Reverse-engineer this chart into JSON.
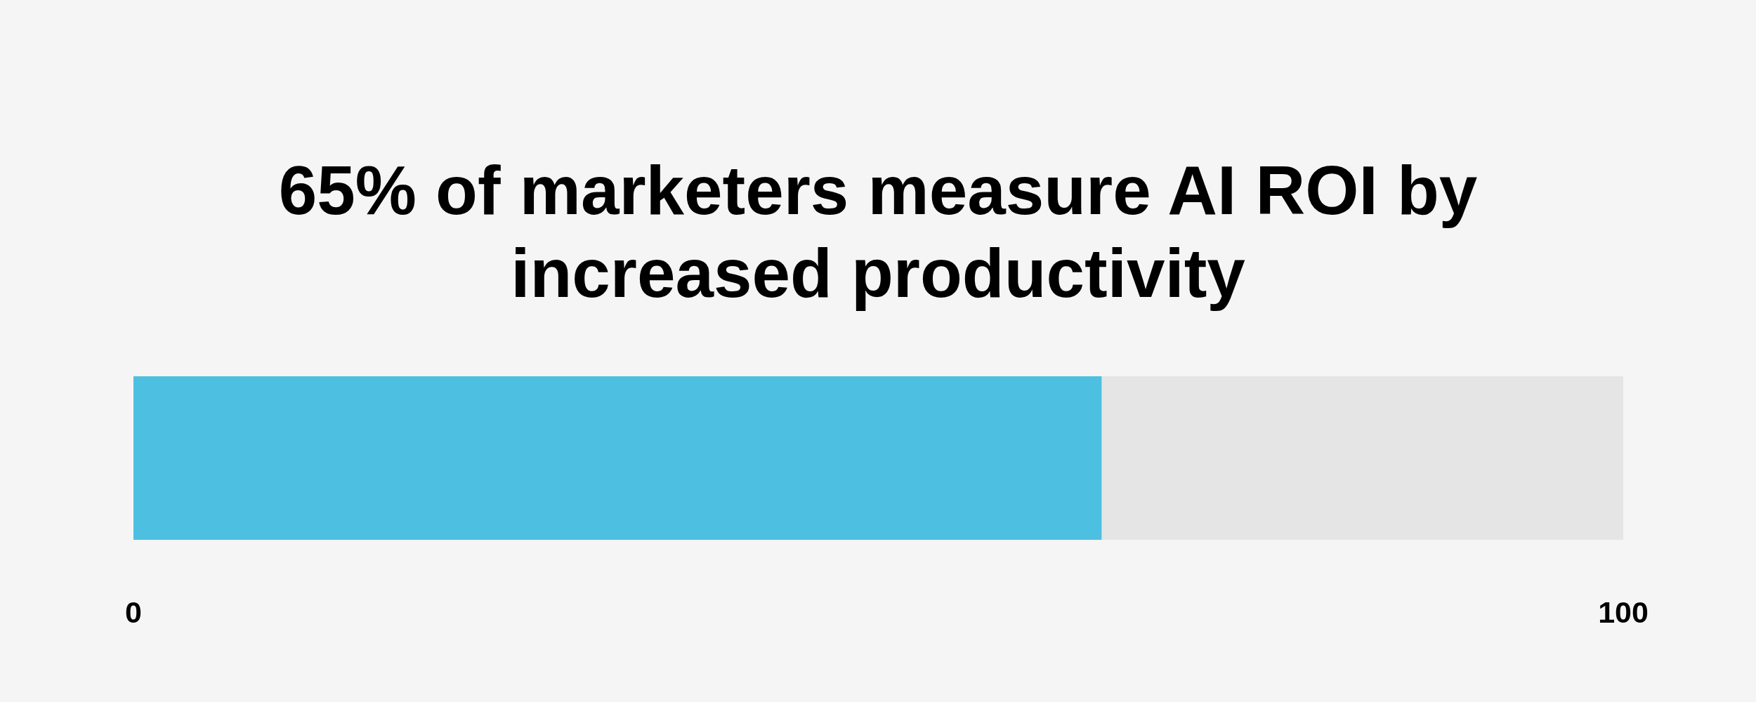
{
  "chart_data": {
    "type": "bar",
    "orientation": "horizontal",
    "stacked": true,
    "title": "65% of marketers measure AI ROI by increased productivity",
    "categories": [
      null
    ],
    "series": [
      {
        "color": "#4dc0e1",
        "values": [
          65
        ]
      },
      {
        "color": "#e5e5e5",
        "values": [
          35
        ]
      }
    ],
    "xlim": [
      0,
      100
    ],
    "xticks": [
      0,
      100
    ]
  }
}
